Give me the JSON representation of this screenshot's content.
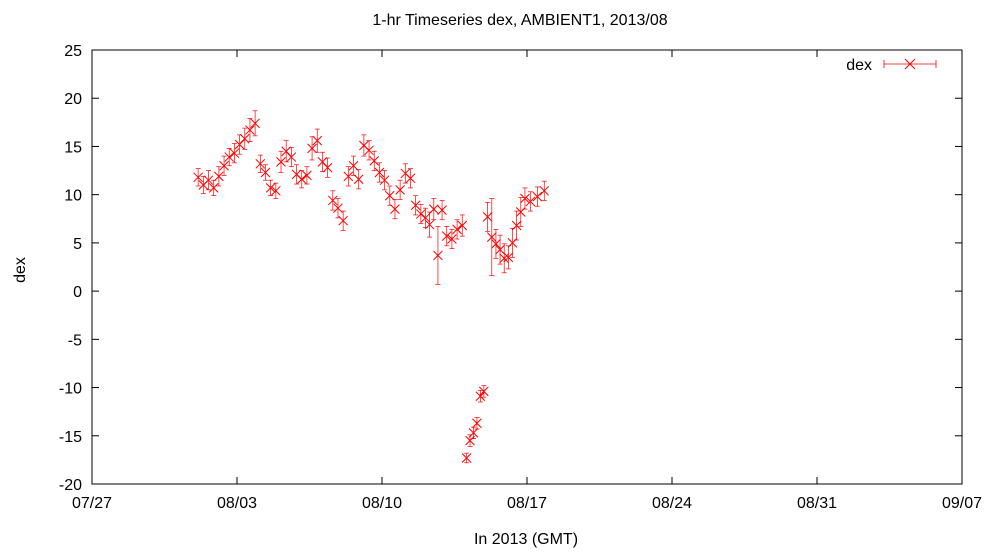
{
  "chart_data": {
    "type": "scatter",
    "title": "1-hr Timeseries dex, AMBIENT1, 2013/08",
    "xlabel": "In 2013 (GMT)",
    "ylabel": "dex",
    "x_is_date": true,
    "xlim": [
      "2013-07-27",
      "2013-09-07"
    ],
    "x_ticks": [
      "07/27",
      "08/03",
      "08/10",
      "08/17",
      "08/24",
      "08/31",
      "09/07"
    ],
    "ylim": [
      -20,
      25
    ],
    "y_ticks": [
      "-20",
      "-15",
      "-10",
      "-5",
      "0",
      "5",
      "10",
      "15",
      "20",
      "25"
    ],
    "grid": false,
    "legend_position": "top-right",
    "error_bars": true,
    "series": [
      {
        "name": "dex",
        "color": "#ff0000",
        "marker": "x",
        "points": [
          [
            "2013-08-01",
            11.8,
            0.9
          ],
          [
            "2013-08-01",
            11.0,
            0.9
          ],
          [
            "2013-08-01",
            11.5,
            1.0
          ],
          [
            "2013-08-01",
            10.7,
            0.8
          ],
          [
            "2013-08-02",
            11.9,
            1.0
          ],
          [
            "2013-08-02",
            13.0,
            1.0
          ],
          [
            "2013-08-02",
            13.9,
            0.9
          ],
          [
            "2013-08-02",
            14.3,
            1.0
          ],
          [
            "2013-08-03",
            15.2,
            1.0
          ],
          [
            "2013-08-03",
            15.8,
            1.1
          ],
          [
            "2013-08-03",
            16.7,
            1.2
          ],
          [
            "2013-08-03",
            17.4,
            1.3
          ],
          [
            "2013-08-04",
            13.2,
            0.9
          ],
          [
            "2013-08-04",
            12.3,
            0.8
          ],
          [
            "2013-08-04",
            10.7,
            0.8
          ],
          [
            "2013-08-04",
            10.4,
            0.8
          ],
          [
            "2013-08-05",
            13.4,
            1.1
          ],
          [
            "2013-08-05",
            14.5,
            1.1
          ],
          [
            "2013-08-05",
            13.9,
            1.0
          ],
          [
            "2013-08-05",
            12.1,
            1.0
          ],
          [
            "2013-08-06",
            11.6,
            0.9
          ],
          [
            "2013-08-06",
            12.0,
            0.9
          ],
          [
            "2013-08-06",
            14.8,
            1.2
          ],
          [
            "2013-08-06",
            15.6,
            1.2
          ],
          [
            "2013-08-07",
            13.4,
            1.0
          ],
          [
            "2013-08-07",
            12.8,
            1.0
          ],
          [
            "2013-08-07",
            9.4,
            1.0
          ],
          [
            "2013-08-07",
            8.6,
            1.0
          ],
          [
            "2013-08-08",
            7.3,
            1.0
          ],
          [
            "2013-08-08",
            11.9,
            1.0
          ],
          [
            "2013-08-08",
            13.0,
            1.0
          ],
          [
            "2013-08-08",
            11.6,
            1.0
          ],
          [
            "2013-08-09",
            15.1,
            1.1
          ],
          [
            "2013-08-09",
            14.6,
            1.0
          ],
          [
            "2013-08-09",
            13.5,
            1.0
          ],
          [
            "2013-08-09",
            12.3,
            1.0
          ],
          [
            "2013-08-10",
            11.5,
            1.0
          ],
          [
            "2013-08-10",
            9.9,
            1.0
          ],
          [
            "2013-08-10",
            8.5,
            1.0
          ],
          [
            "2013-08-10",
            10.5,
            1.0
          ],
          [
            "2013-08-11",
            12.2,
            1.0
          ],
          [
            "2013-08-11",
            11.7,
            1.0
          ],
          [
            "2013-08-11",
            8.9,
            1.0
          ],
          [
            "2013-08-11",
            8.0,
            1.0
          ],
          [
            "2013-08-12",
            7.6,
            1.0
          ],
          [
            "2013-08-12",
            6.9,
            1.3
          ],
          [
            "2013-08-12",
            8.5,
            1.1
          ],
          [
            "2013-08-12",
            3.7,
            3.0
          ],
          [
            "2013-08-12",
            8.4,
            1.0
          ],
          [
            "2013-08-13",
            5.7,
            1.0
          ],
          [
            "2013-08-13",
            5.4,
            1.0
          ],
          [
            "2013-08-13",
            6.4,
            1.0
          ],
          [
            "2013-08-13",
            6.8,
            1.1
          ],
          [
            "2013-08-14",
            -17.3,
            0.5
          ],
          [
            "2013-08-14",
            -15.5,
            0.6
          ],
          [
            "2013-08-14",
            -14.7,
            0.6
          ],
          [
            "2013-08-14",
            -13.7,
            0.6
          ],
          [
            "2013-08-14",
            -10.9,
            0.6
          ],
          [
            "2013-08-14",
            -10.4,
            0.6
          ],
          [
            "2013-08-15",
            7.7,
            1.5
          ],
          [
            "2013-08-15",
            5.6,
            4.0
          ],
          [
            "2013-08-15",
            4.9,
            1.5
          ],
          [
            "2013-08-15",
            4.3,
            1.5
          ],
          [
            "2013-08-15",
            3.4,
            1.5
          ],
          [
            "2013-08-16",
            3.5,
            1.2
          ],
          [
            "2013-08-16",
            5.0,
            1.5
          ],
          [
            "2013-08-16",
            6.8,
            1.5
          ],
          [
            "2013-08-16",
            8.2,
            1.5
          ],
          [
            "2013-08-16",
            9.6,
            1.1
          ],
          [
            "2013-08-17",
            9.3,
            1.0
          ],
          [
            "2013-08-17",
            9.8,
            1.0
          ],
          [
            "2013-08-17",
            10.4,
            1.0
          ]
        ]
      }
    ]
  }
}
